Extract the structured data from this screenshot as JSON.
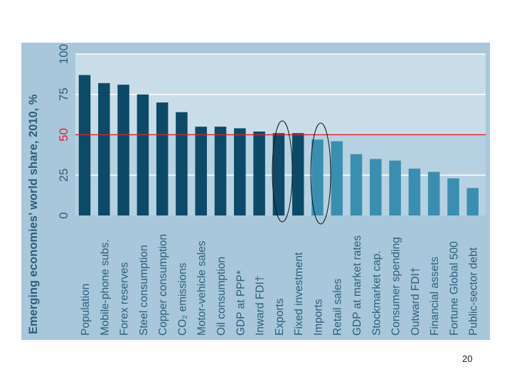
{
  "page_number": "20",
  "chart_data": {
    "type": "bar",
    "ylabel": "Emerging economies’ world share, 2010, %",
    "ylim": [
      0,
      100
    ],
    "yticks": [
      0,
      25,
      50,
      75,
      100
    ],
    "reference_line": 50,
    "grid": true,
    "categories": [
      "Population",
      "Mobile-phone subs.",
      "Forex reserves",
      "Steel consumption",
      "Copper consumption",
      "CO₂ emissions",
      "Motor-vehicle sales",
      "Oil consumption",
      "GDP at PPP*",
      "Inward FDI†",
      "Exports",
      "Fixed investment",
      "Imports",
      "Retail sales",
      "GDP at market rates",
      "Stockmarket cap.",
      "Consumer spending",
      "Outward FDI†",
      "Financial assets",
      "Fortune Global 500",
      "Public-sector debt"
    ],
    "values": [
      87,
      82,
      81,
      75,
      70,
      64,
      55,
      55,
      54,
      52,
      51,
      51,
      47,
      46,
      38,
      35,
      34,
      29,
      27,
      23,
      17
    ],
    "highlighted": [
      "Exports",
      "Imports"
    ],
    "colors": {
      "above_50": "#0c4a68",
      "below_50": "#3a8fb0",
      "reference_line": "#e0202a",
      "plot_bg_upper": "#c9dde9",
      "plot_bg_lower": "#b6d1e1",
      "outer_bg": "#a9c7da",
      "axis_text": "#2b5f7e",
      "ref_label": "#e0202a"
    }
  }
}
